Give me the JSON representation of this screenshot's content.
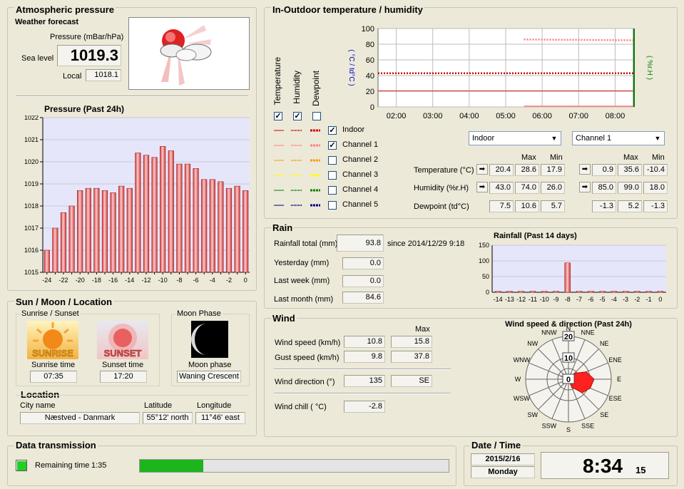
{
  "pressure": {
    "title": "Atmospheric pressure",
    "forecast_label": "Weather forecast",
    "unit_label": "Pressure (mBar/hPa)",
    "sea_level_label": "Sea level",
    "sea_level_value": "1019.3",
    "local_label": "Local",
    "local_value": "1018.1",
    "forecast_icon": "partly-cloudy-sun-icon",
    "chart_title": "Pressure (Past 24h)"
  },
  "chart_data": [
    {
      "type": "bar",
      "title": "Pressure (Past 24h)",
      "categories": [
        "-24",
        "-23",
        "-22",
        "-21",
        "-20",
        "-19",
        "-18",
        "-17",
        "-16",
        "-15",
        "-14",
        "-13",
        "-12",
        "-11",
        "-10",
        "-9",
        "-8",
        "-7",
        "-6",
        "-5",
        "-4",
        "-3",
        "-2",
        "-1",
        "0"
      ],
      "x_tick_labels": [
        "-24",
        "-22",
        "-20",
        "-18",
        "-16",
        "-14",
        "-12",
        "-10",
        "-8",
        "-6",
        "-4",
        "-2",
        "0"
      ],
      "y_tick_labels": [
        "1015",
        "1016",
        "1017",
        "1018",
        "1019",
        "1020",
        "1021",
        "1022"
      ],
      "values": [
        1016.0,
        1017.0,
        1017.7,
        1018.0,
        1018.7,
        1018.8,
        1018.8,
        1018.7,
        1018.6,
        1018.9,
        1018.8,
        1020.4,
        1020.3,
        1020.2,
        1020.7,
        1020.5,
        1019.9,
        1019.9,
        1019.7,
        1019.2,
        1019.2,
        1019.1,
        1018.8,
        1018.9,
        1018.7
      ],
      "ylim": [
        1015,
        1022
      ],
      "grid": true
    },
    {
      "type": "line",
      "title": "",
      "x_tick_labels": [
        "02:00",
        "03:00",
        "04:00",
        "05:00",
        "06:00",
        "07:00",
        "08:00"
      ],
      "y_tick_labels": [
        "0",
        "20",
        "40",
        "60",
        "80",
        "100"
      ],
      "ylim": [
        0,
        100
      ],
      "ylabel_left": "( °C / td°C )",
      "ylabel_right": "( %r.H )",
      "series": [
        {
          "x": [
            1.5,
            8.5
          ],
          "values": [
            20.5,
            20.4
          ]
        },
        {
          "x": [
            1.5,
            8.5
          ],
          "values": [
            43.0,
            43.0
          ]
        },
        {
          "x": [
            5.5,
            8.5
          ],
          "values": [
            86.0,
            85.0
          ]
        },
        {
          "x": [
            5.5,
            8.5
          ],
          "values": [
            0.9,
            0.9
          ]
        }
      ],
      "grid": true
    },
    {
      "type": "bar",
      "title": "Rainfall (Past 14 days)",
      "categories": [
        "-14",
        "-13",
        "-12",
        "-11",
        "-10",
        "-9",
        "-8",
        "-7",
        "-6",
        "-5",
        "-4",
        "-3",
        "-2",
        "-1",
        "0"
      ],
      "values": [
        0,
        0,
        0,
        0,
        0,
        0,
        93.8,
        0,
        0,
        0,
        0,
        0,
        0,
        0,
        0
      ],
      "y_tick_labels": [
        "0",
        "50",
        "100",
        "150"
      ],
      "ylim": [
        0,
        150
      ],
      "grid": true
    },
    {
      "type": "radar",
      "title": "Wind speed & direction (Past 24h)",
      "directions": [
        "N",
        "NNE",
        "NE",
        "ENE",
        "E",
        "ESE",
        "SE",
        "SSE",
        "S",
        "SSW",
        "SW",
        "WSW",
        "W",
        "WNW",
        "NW",
        "NNW"
      ],
      "ring_labels": [
        "0",
        "10",
        "20"
      ],
      "values": [
        0,
        0,
        4,
        9,
        12,
        11,
        9,
        4,
        0,
        0,
        0,
        0,
        0,
        4,
        0,
        0
      ],
      "rmax": 20
    }
  ],
  "temphum": {
    "title": "In-Outdoor temperature / humidity",
    "col_temperature": "Temperature",
    "col_humidity": "Humidity",
    "col_dewpoint": "Dewpoint",
    "channels": [
      {
        "label": "Indoor",
        "checked": true,
        "color": "#cc0000"
      },
      {
        "label": "Channel 1",
        "checked": true,
        "color": "#ff8080"
      },
      {
        "label": "Channel 2",
        "checked": false,
        "color": "#ff9900"
      },
      {
        "label": "Channel 3",
        "checked": false,
        "color": "#ffff00"
      },
      {
        "label": "Channel 4",
        "checked": false,
        "color": "#008000"
      },
      {
        "label": "Channel 5",
        "checked": false,
        "color": "#000080"
      }
    ],
    "select_left": "Indoor",
    "select_right": "Channel 1",
    "max_label": "Max",
    "min_label": "Min",
    "temp_label": "Temperature (°C)",
    "hum_label": "Humidity (%r.H)",
    "dew_label": "Dewpoint (td°C)",
    "left": {
      "temp": "20.4",
      "temp_max": "28.6",
      "temp_min": "17.9",
      "hum": "43.0",
      "hum_max": "74.0",
      "hum_min": "26.0",
      "dew": "7.5",
      "dew_max": "10.6",
      "dew_min": "5.7"
    },
    "right": {
      "temp": "0.9",
      "temp_max": "35.6",
      "temp_min": "-10.4",
      "hum": "85.0",
      "hum_max": "99.0",
      "hum_min": "18.0",
      "dew": "-1.3",
      "dew_max": "5.2",
      "dew_min": "-1.3"
    }
  },
  "rain": {
    "title": "Rain",
    "total_label": "Rainfall total (mm)",
    "total_value": "93.8",
    "since_text": "since 2014/12/29 9:18",
    "yesterday_label": "Yesterday (mm)",
    "yesterday_value": "0.0",
    "lastweek_label": "Last week (mm)",
    "lastweek_value": "0.0",
    "lastmonth_label": "Last month (mm)",
    "lastmonth_value": "84.6"
  },
  "wind": {
    "title": "Wind",
    "max_label": "Max",
    "speed_label": "Wind speed (km/h)",
    "speed_value": "10.8",
    "speed_max": "15.8",
    "gust_label": "Gust speed (km/h)",
    "gust_value": "9.8",
    "gust_max": "37.8",
    "dir_label": "Wind direction (°)",
    "dir_value": "135",
    "dir_text": "SE",
    "chill_label": "Wind chill ( °C)",
    "chill_value": "-2.8"
  },
  "sunmoon": {
    "title": "Sun / Moon / Location",
    "sunrise_group": "Sunrise / Sunset",
    "sunrise_word": "SUNRISE",
    "sunset_word": "SUNSET",
    "sunrise_label": "Sunrise time",
    "sunrise_value": "07:35",
    "sunset_label": "Sunset time",
    "sunset_value": "17:20",
    "moon_group": "Moon Phase",
    "moon_label": "Moon phase",
    "moon_value": "Waning Crescent",
    "location_title": "Location",
    "city_label": "City name",
    "city_value": "Næstved - Danmark",
    "lat_label": "Latitude",
    "lat_value": "55°12' north",
    "lon_label": "Longitude",
    "lon_value": "11°46' east"
  },
  "transmission": {
    "title": "Data transmission",
    "remaining_label": "Remaining time",
    "remaining_value": "1:35",
    "progress_fraction": 0.205
  },
  "datetime": {
    "title": "Date / Time",
    "date": "2015/2/16",
    "weekday": "Monday",
    "time": "8:34",
    "seconds": "15"
  }
}
